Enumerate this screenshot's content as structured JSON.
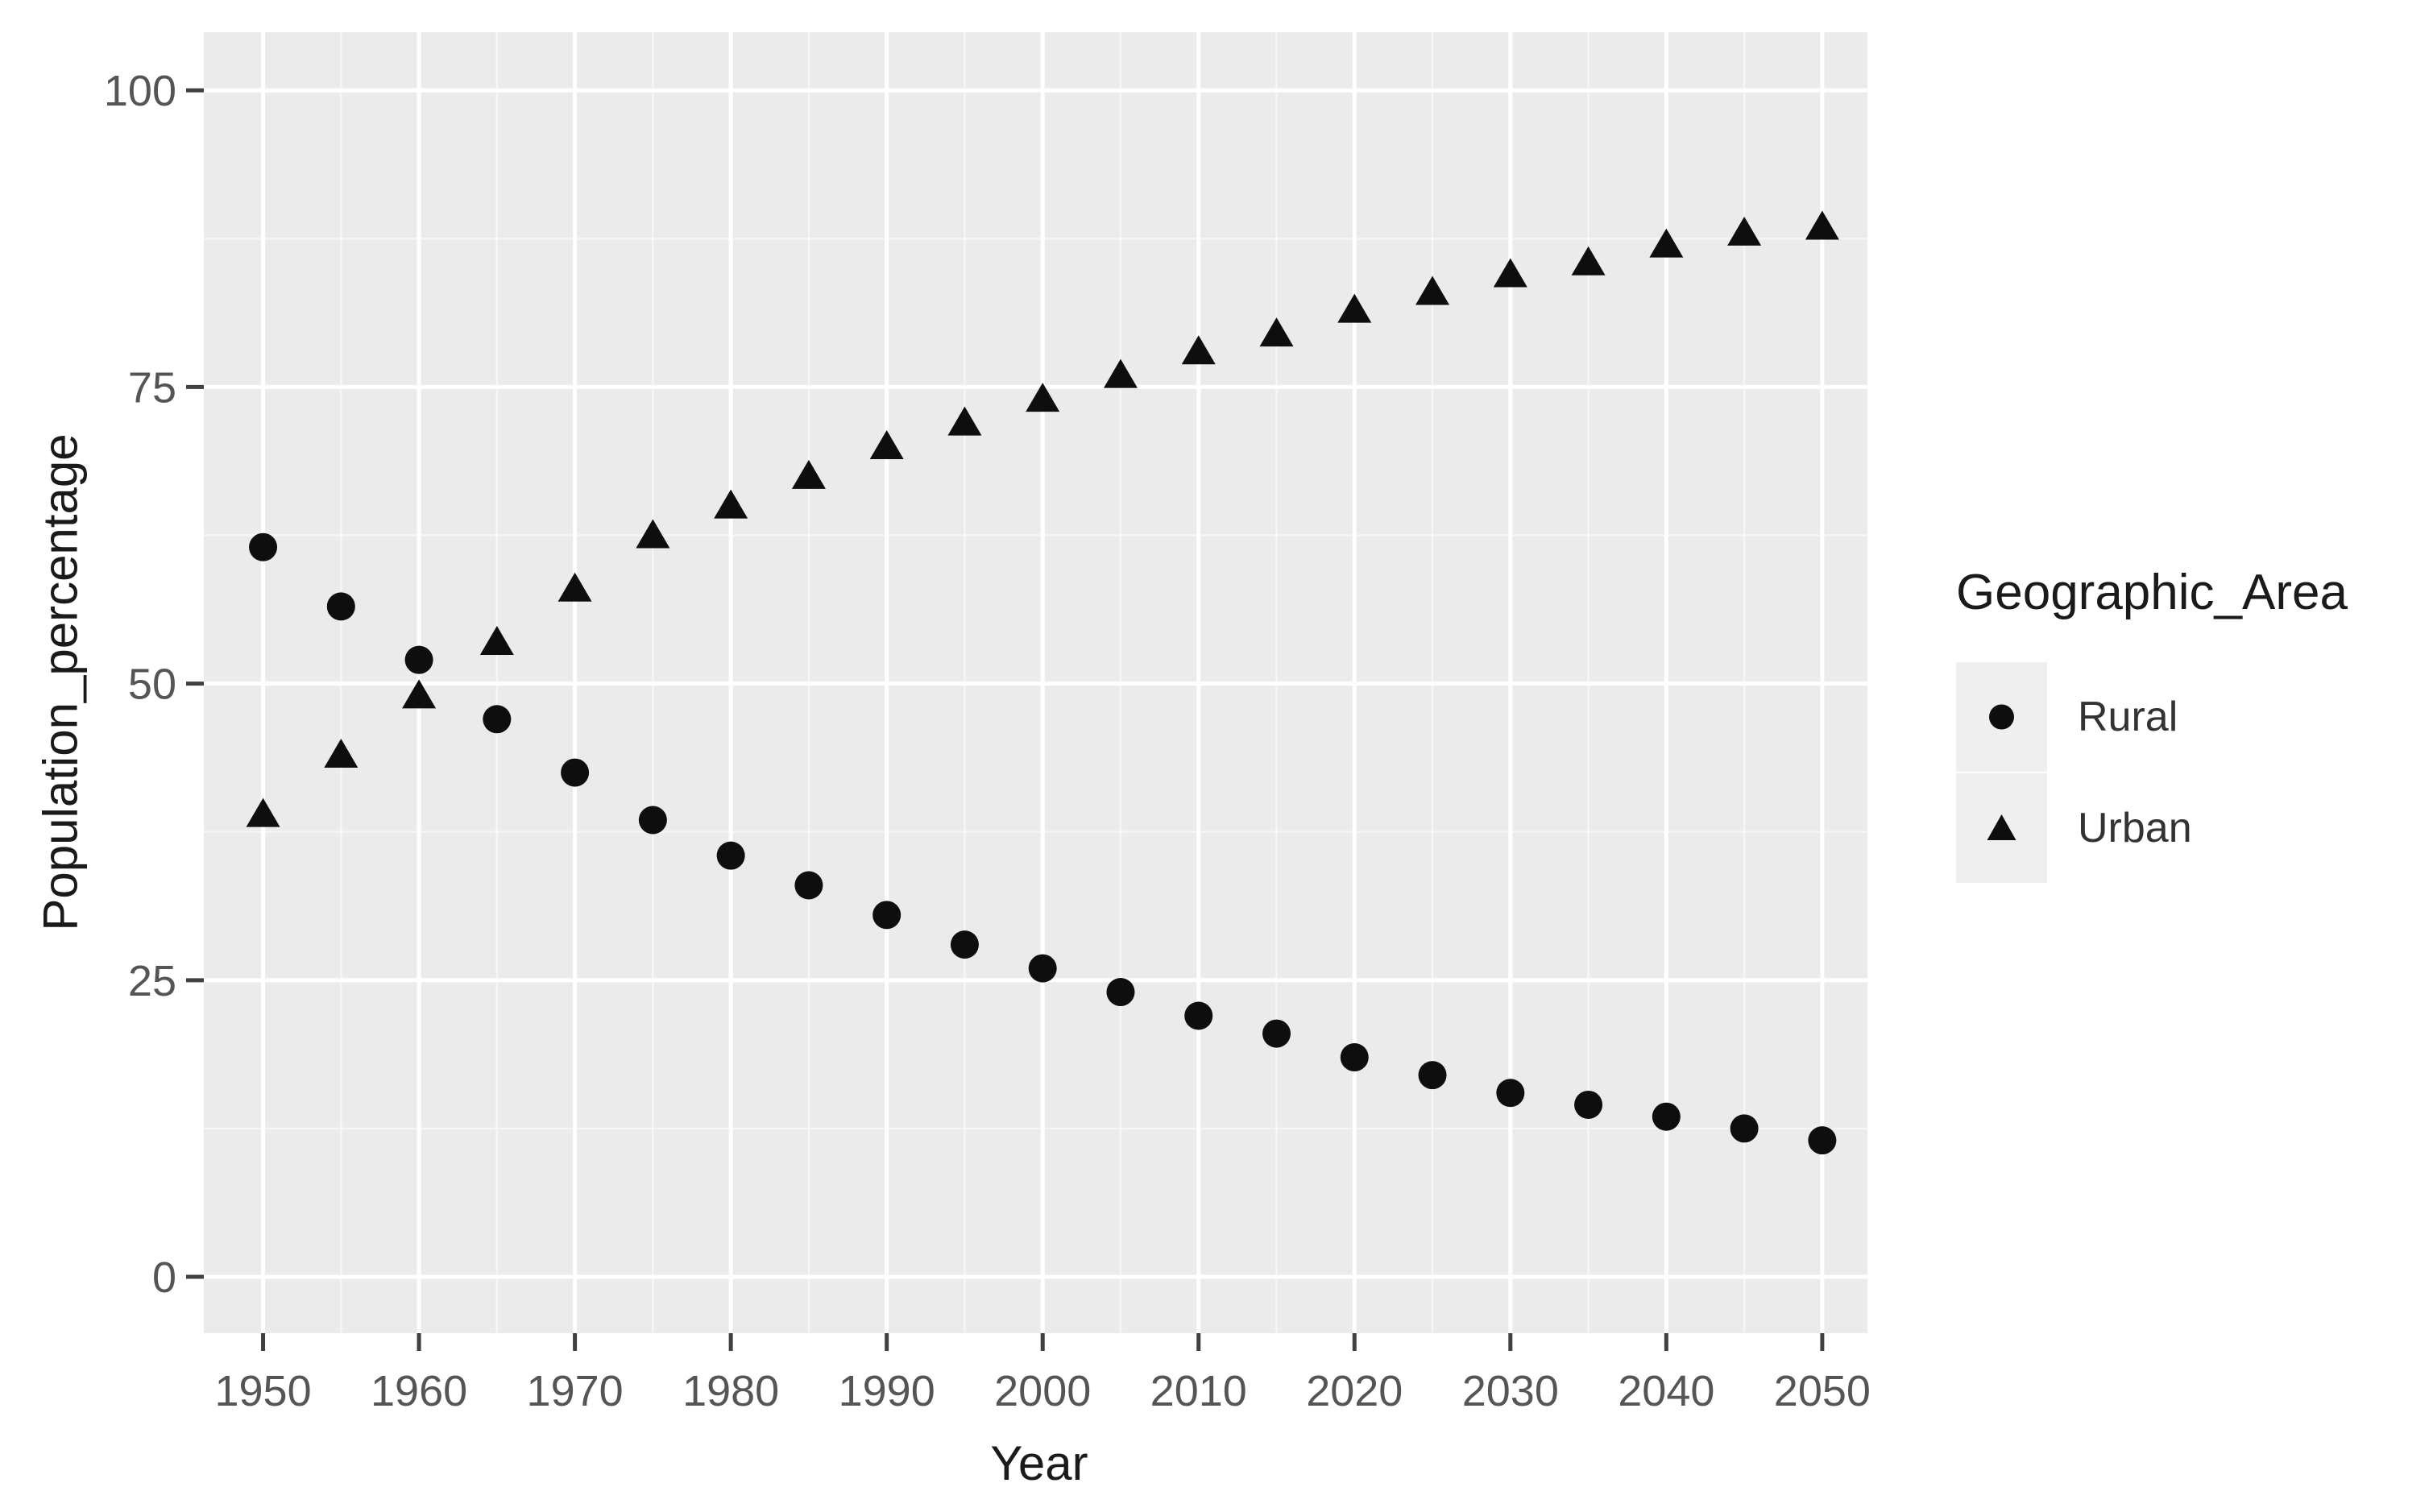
{
  "chart_data": {
    "type": "scatter",
    "title": "",
    "xlabel": "Year",
    "ylabel": "Population_percentage",
    "legend_title": "Geographic_Area",
    "legend_position": "right",
    "grid": true,
    "panel_background": "#ebebeb",
    "gridline_color": "#ffffff",
    "marker_color": "#0e0e0e",
    "tick_mark_color": "#404040",
    "tick_label_color": "#555555",
    "axis_title_color": "#1a1a1a",
    "legend_key_background": "#efefef",
    "x": [
      1950,
      1955,
      1960,
      1965,
      1970,
      1975,
      1980,
      1985,
      1990,
      1995,
      2000,
      2005,
      2010,
      2015,
      2020,
      2025,
      2030,
      2035,
      2040,
      2045,
      2050
    ],
    "series": [
      {
        "name": "Rural",
        "marker": "circle",
        "values": [
          61.5,
          56.5,
          52,
          47,
          42.5,
          38.5,
          35.5,
          33,
          30.5,
          28,
          26,
          24,
          22,
          20.5,
          18.5,
          17,
          15.5,
          14.5,
          13.5,
          12.5,
          11.5
        ]
      },
      {
        "name": "Urban",
        "marker": "triangle",
        "values": [
          39,
          44,
          49,
          53.5,
          58,
          62.5,
          65,
          67.5,
          70,
          72,
          74,
          76,
          78,
          79.5,
          81.5,
          83,
          84.5,
          85.5,
          87,
          88,
          88.5
        ]
      }
    ],
    "x_ticks": [
      1950,
      1960,
      1970,
      1980,
      1990,
      2000,
      2010,
      2020,
      2030,
      2040,
      2050
    ],
    "y_ticks": [
      0,
      25,
      50,
      75,
      100
    ],
    "x_domain": [
      1946.2,
      2052.9
    ],
    "y_domain": [
      -4.75,
      104.9
    ],
    "ylim": [
      0,
      100
    ]
  }
}
